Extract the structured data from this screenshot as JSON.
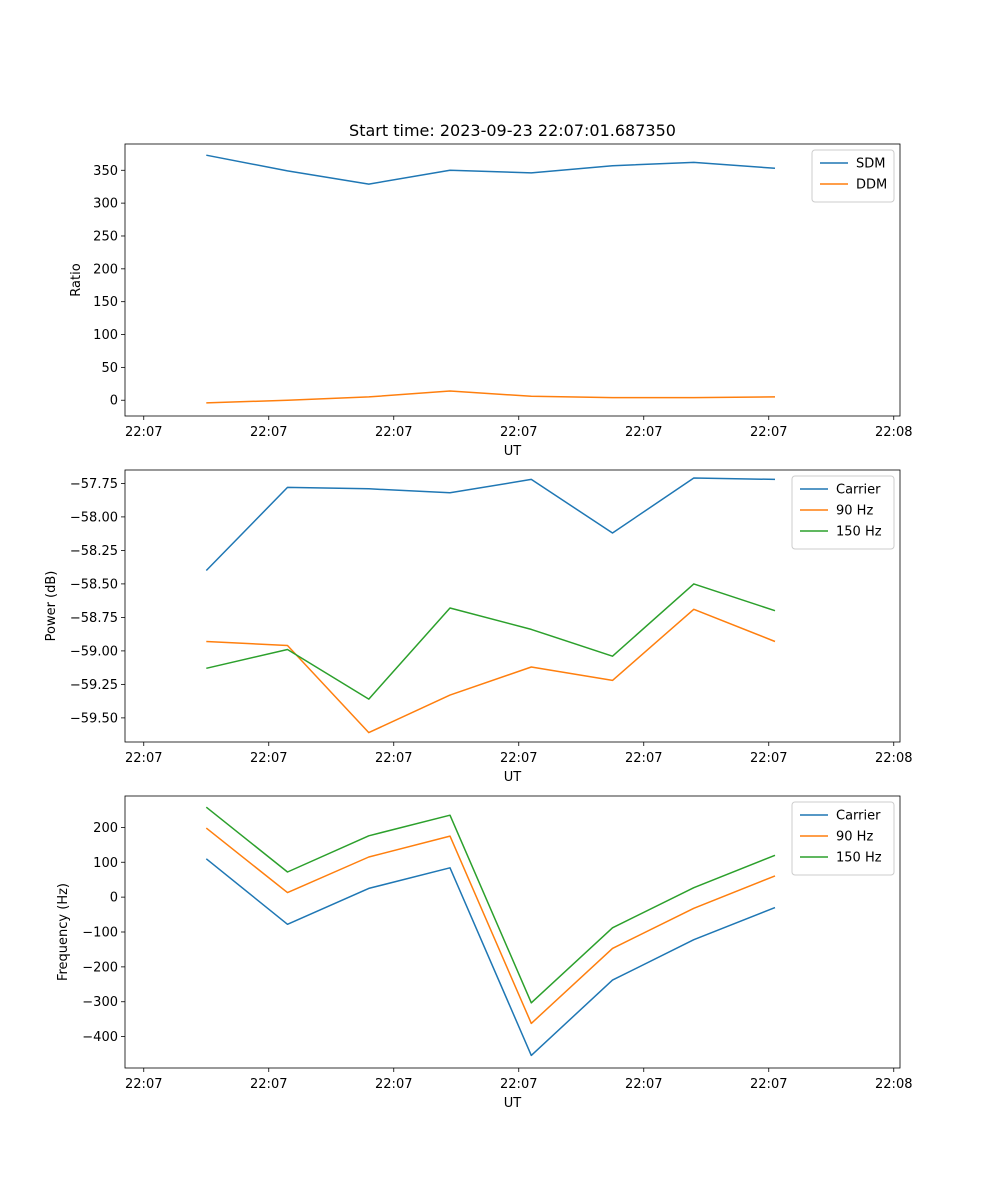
{
  "figure": {
    "title": "Start time: 2023-09-23 22:07:01.687350"
  },
  "colors": {
    "blue": "#1f77b4",
    "orange": "#ff7f0e",
    "green": "#2ca02c",
    "axes": "#000000",
    "legend_border": "#cccccc"
  },
  "chart_data": [
    {
      "type": "line",
      "title": "Start time: 2023-09-23 22:07:01.687350",
      "xlabel": "UT",
      "ylabel": "Ratio",
      "x_ticks": [
        "22:07",
        "22:07",
        "22:07",
        "22:07",
        "22:07",
        "22:07",
        "22:08"
      ],
      "x_tick_positions": [
        0,
        1,
        2,
        3,
        4,
        5,
        6
      ],
      "xlim": [
        -0.15,
        6.05
      ],
      "x": [
        0.5,
        1.15,
        1.8,
        2.45,
        3.1,
        3.75,
        4.4,
        5.05
      ],
      "ylim": [
        -24,
        390
      ],
      "y_ticks": [
        0,
        50,
        100,
        150,
        200,
        250,
        300,
        350
      ],
      "y_tick_labels": [
        "0",
        "50",
        "100",
        "150",
        "200",
        "250",
        "300",
        "350"
      ],
      "legend_position": "top-right",
      "series": [
        {
          "name": "SDM",
          "color": "#1f77b4",
          "values": [
            373,
            349,
            329,
            350,
            346,
            357,
            362,
            353
          ]
        },
        {
          "name": "DDM",
          "color": "#ff7f0e",
          "values": [
            -4,
            0,
            5,
            14,
            6,
            4,
            4,
            5
          ]
        }
      ]
    },
    {
      "type": "line",
      "title": "",
      "xlabel": "UT",
      "ylabel": "Power (dB)",
      "x_ticks": [
        "22:07",
        "22:07",
        "22:07",
        "22:07",
        "22:07",
        "22:07",
        "22:08"
      ],
      "x_tick_positions": [
        0,
        1,
        2,
        3,
        4,
        5,
        6
      ],
      "xlim": [
        -0.15,
        6.05
      ],
      "x": [
        0.5,
        1.15,
        1.8,
        2.45,
        3.1,
        3.75,
        4.4,
        5.05
      ],
      "ylim": [
        -59.68,
        -57.65
      ],
      "y_ticks": [
        -59.5,
        -59.25,
        -59.0,
        -58.75,
        -58.5,
        -58.25,
        -58.0,
        -57.75
      ],
      "y_tick_labels": [
        "−59.50",
        "−59.25",
        "−59.00",
        "−58.75",
        "−58.50",
        "−58.25",
        "−58.00",
        "−57.75"
      ],
      "legend_position": "top-right",
      "series": [
        {
          "name": "Carrier",
          "color": "#1f77b4",
          "values": [
            -58.4,
            -57.78,
            -57.79,
            -57.82,
            -57.72,
            -58.12,
            -57.71,
            -57.72
          ]
        },
        {
          "name": "90 Hz",
          "color": "#ff7f0e",
          "values": [
            -58.93,
            -58.96,
            -59.61,
            -59.33,
            -59.12,
            -59.22,
            -58.69,
            -58.93
          ]
        },
        {
          "name": "150 Hz",
          "color": "#2ca02c",
          "values": [
            -59.13,
            -58.99,
            -59.36,
            -58.68,
            -58.84,
            -59.04,
            -58.5,
            -58.7
          ]
        }
      ]
    },
    {
      "type": "line",
      "title": "",
      "xlabel": "UT",
      "ylabel": "Frequency (Hz)",
      "x_ticks": [
        "22:07",
        "22:07",
        "22:07",
        "22:07",
        "22:07",
        "22:07",
        "22:08"
      ],
      "x_tick_positions": [
        0,
        1,
        2,
        3,
        4,
        5,
        6
      ],
      "xlim": [
        -0.15,
        6.05
      ],
      "x": [
        0.5,
        1.15,
        1.8,
        2.45,
        3.1,
        3.75,
        4.4,
        5.05
      ],
      "ylim": [
        -490,
        290
      ],
      "y_ticks": [
        -400,
        -300,
        -200,
        -100,
        0,
        100,
        200
      ],
      "y_tick_labels": [
        "−400",
        "−300",
        "−200",
        "−100",
        "0",
        "100",
        "200"
      ],
      "legend_position": "top-right",
      "series": [
        {
          "name": "Carrier",
          "color": "#1f77b4",
          "values": [
            110,
            -78,
            25,
            84,
            -454,
            -238,
            -122,
            -30
          ]
        },
        {
          "name": "90 Hz",
          "color": "#ff7f0e",
          "values": [
            198,
            13,
            115,
            175,
            -362,
            -147,
            -32,
            61
          ]
        },
        {
          "name": "150 Hz",
          "color": "#2ca02c",
          "values": [
            258,
            72,
            176,
            235,
            -303,
            -88,
            27,
            120
          ]
        }
      ]
    }
  ]
}
